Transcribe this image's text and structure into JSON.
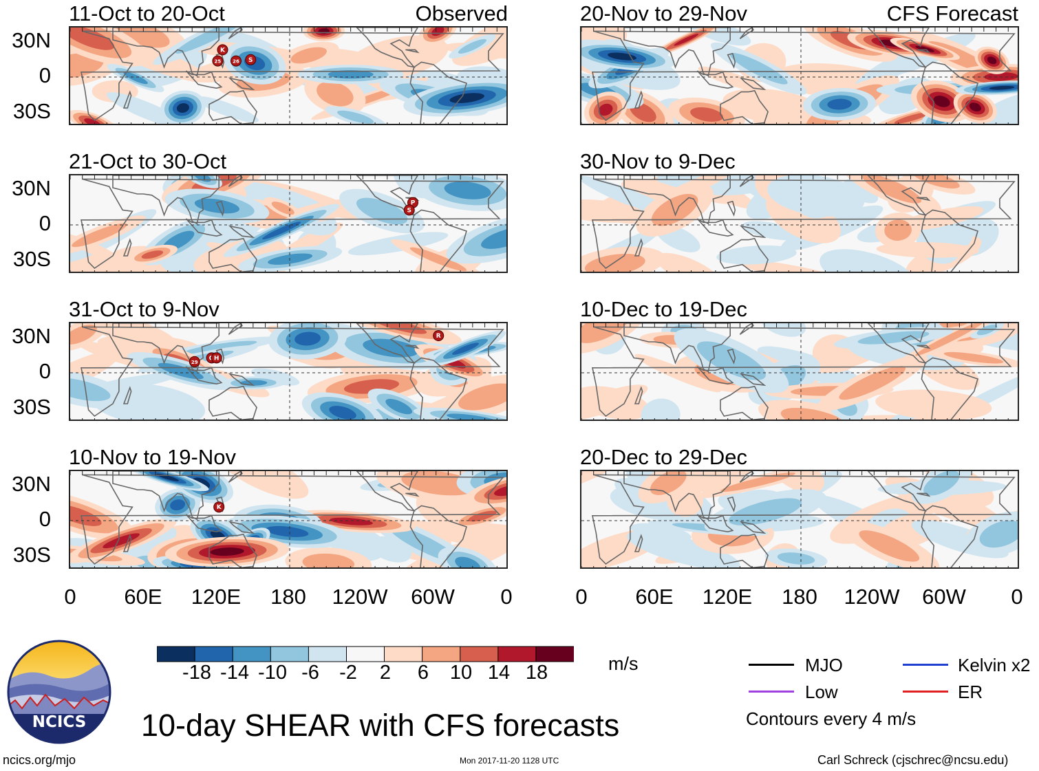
{
  "title": "10-day SHEAR with CFS forecasts",
  "chart_data": {
    "type": "heatmap",
    "variable": "Vertical wind shear anomaly",
    "units": "m/s",
    "columns": [
      {
        "label": "Observed",
        "panels": [
          {
            "period": "11-Oct to 20-Oct",
            "storms": [
              "K",
              "25",
              "26",
              "S"
            ]
          },
          {
            "period": "21-Oct to 30-Oct",
            "storms": [
              "P",
              "S"
            ]
          },
          {
            "period": "31-Oct to 9-Nov",
            "storms": [
              "R",
              "29",
              "O",
              "H"
            ]
          },
          {
            "period": "10-Nov to 19-Nov",
            "storms": [
              "K"
            ]
          }
        ]
      },
      {
        "label": "CFS Forecast",
        "panels": [
          {
            "period": "20-Nov to 29-Nov"
          },
          {
            "period": "30-Nov to 9-Dec"
          },
          {
            "period": "10-Dec to 19-Dec"
          },
          {
            "period": "20-Dec to 29-Dec"
          }
        ]
      }
    ],
    "x_ticks": [
      "0",
      "60E",
      "120E",
      "180",
      "120W",
      "60W",
      "0"
    ],
    "y_ticks": [
      "30N",
      "0",
      "30S"
    ],
    "colorbar": {
      "ticks": [
        "-18",
        "-14",
        "-10",
        "-6",
        "-2",
        "2",
        "6",
        "10",
        "14",
        "18"
      ],
      "colors": [
        "#0b2f5e",
        "#2166ac",
        "#4393c3",
        "#92c5de",
        "#d1e5f0",
        "#f7f7f7",
        "#fddbc7",
        "#f4a582",
        "#d6604d",
        "#b2182b",
        "#67001f"
      ]
    },
    "legend": {
      "MJO": {
        "label": "MJO",
        "color": "#000000"
      },
      "Kelvin": {
        "label": "Kelvin x2",
        "color": "#1f3fd0"
      },
      "Low": {
        "label": "Low",
        "color": "#a040e0"
      },
      "ER": {
        "label": "ER",
        "color": "#e02020"
      },
      "contour_note": "Contours every 4 m/s"
    }
  },
  "logo": {
    "text": "NCICS"
  },
  "footer": {
    "url": "ncics.org/mjo",
    "timestamp": "Mon 2017-11-20 1128 UTC",
    "author": "Carl Schreck (cjschrec@ncsu.edu)"
  }
}
